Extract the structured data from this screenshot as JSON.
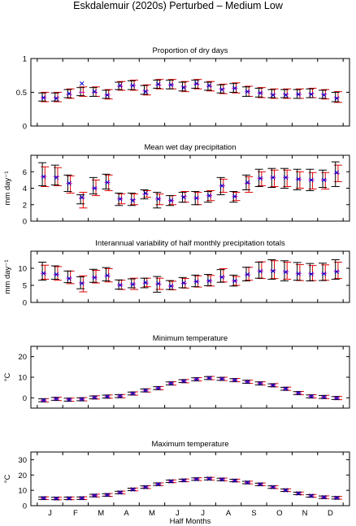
{
  "figure": {
    "title": "Eskdalemuir (2020s) Perturbed – Medium Low",
    "xlabel": "Half Months",
    "month_labels": [
      "J",
      "F",
      "M",
      "A",
      "M",
      "J",
      "J",
      "A",
      "S",
      "O",
      "N",
      "D"
    ]
  },
  "colors": {
    "interval_black": "#000000",
    "interval_red": "#e00000",
    "marker_blue": "#0000cc",
    "marker_magenta": "#cc00cc",
    "axes": "#000000"
  },
  "chart_data": [
    {
      "type": "errorbar",
      "title": "Proportion of dry days",
      "ylabel": "",
      "ylim": [
        0,
        1
      ],
      "yticks": [
        0,
        0.5,
        1
      ],
      "x": [
        1,
        2,
        3,
        4,
        5,
        6,
        7,
        8,
        9,
        10,
        11,
        12,
        13,
        14,
        15,
        16,
        17,
        18,
        19,
        20,
        21,
        22,
        23,
        24
      ],
      "center": [
        0.42,
        0.42,
        0.47,
        0.5,
        0.5,
        0.46,
        0.59,
        0.6,
        0.52,
        0.61,
        0.61,
        0.58,
        0.62,
        0.59,
        0.55,
        0.56,
        0.51,
        0.49,
        0.47,
        0.47,
        0.47,
        0.48,
        0.47,
        0.42
      ],
      "lower_black": [
        0.37,
        0.37,
        0.42,
        0.45,
        0.44,
        0.41,
        0.54,
        0.54,
        0.47,
        0.56,
        0.55,
        0.52,
        0.56,
        0.53,
        0.49,
        0.5,
        0.44,
        0.43,
        0.42,
        0.42,
        0.41,
        0.42,
        0.41,
        0.36
      ],
      "upper_black": [
        0.49,
        0.49,
        0.54,
        0.57,
        0.57,
        0.53,
        0.65,
        0.67,
        0.6,
        0.68,
        0.68,
        0.65,
        0.68,
        0.65,
        0.61,
        0.63,
        0.58,
        0.56,
        0.54,
        0.54,
        0.54,
        0.55,
        0.53,
        0.5
      ],
      "lower_red": [
        0.36,
        0.36,
        0.41,
        0.44,
        0.44,
        0.4,
        0.53,
        0.53,
        0.46,
        0.55,
        0.55,
        0.51,
        0.55,
        0.52,
        0.48,
        0.49,
        0.44,
        0.42,
        0.41,
        0.41,
        0.41,
        0.42,
        0.4,
        0.35
      ],
      "upper_red": [
        0.5,
        0.5,
        0.55,
        0.58,
        0.58,
        0.54,
        0.66,
        0.68,
        0.61,
        0.69,
        0.69,
        0.66,
        0.69,
        0.66,
        0.62,
        0.64,
        0.59,
        0.57,
        0.55,
        0.55,
        0.55,
        0.56,
        0.54,
        0.51
      ],
      "markers": [
        0.42,
        0.41,
        0.48,
        0.63,
        0.51,
        0.46,
        0.6,
        0.6,
        0.51,
        0.62,
        0.61,
        0.57,
        0.63,
        0.6,
        0.54,
        0.56,
        0.51,
        0.49,
        0.46,
        0.46,
        0.47,
        0.47,
        0.46,
        0.41
      ]
    },
    {
      "type": "errorbar",
      "title": "Mean wet day precipitation",
      "ylabel": "mm day⁻¹",
      "ylim": [
        0,
        8
      ],
      "yticks": [
        0,
        2,
        4,
        6
      ],
      "x": [
        1,
        2,
        3,
        4,
        5,
        6,
        7,
        8,
        9,
        10,
        11,
        12,
        13,
        14,
        15,
        16,
        17,
        18,
        19,
        20,
        21,
        22,
        23,
        24
      ],
      "center": [
        5.4,
        5.4,
        4.6,
        2.8,
        4.0,
        4.7,
        2.7,
        2.6,
        3.3,
        2.7,
        2.5,
        3.0,
        2.8,
        3.1,
        4.3,
        3.0,
        4.6,
        5.2,
        5.3,
        5.3,
        5.1,
        5.0,
        5.0,
        5.8
      ],
      "lower_black": [
        4.3,
        4.4,
        3.6,
        2.1,
        3.3,
        3.9,
        1.9,
        1.9,
        2.7,
        1.6,
        1.9,
        2.3,
        2.0,
        2.3,
        3.2,
        2.3,
        3.8,
        4.2,
        4.1,
        4.0,
        3.8,
        3.7,
        4.1,
        4.2
      ],
      "upper_black": [
        7.1,
        6.8,
        5.6,
        3.2,
        5.3,
        5.7,
        3.4,
        3.4,
        3.8,
        3.5,
        3.1,
        3.5,
        3.6,
        3.6,
        5.3,
        3.6,
        5.6,
        6.3,
        6.4,
        6.4,
        6.3,
        6.3,
        6.2,
        7.2
      ],
      "lower_red": [
        4.2,
        4.3,
        3.4,
        1.6,
        3.1,
        3.7,
        2.1,
        2.0,
        2.9,
        2.0,
        2.0,
        2.3,
        2.0,
        2.5,
        3.5,
        2.5,
        3.5,
        4.3,
        4.2,
        4.2,
        4.0,
        3.9,
        3.9,
        4.8
      ],
      "upper_red": [
        6.6,
        6.5,
        5.5,
        3.5,
        5.0,
        5.6,
        3.3,
        3.3,
        3.7,
        3.3,
        3.1,
        3.6,
        3.5,
        3.7,
        5.1,
        3.5,
        5.4,
        6.0,
        6.2,
        6.2,
        6.0,
        5.9,
        5.9,
        6.8
      ],
      "markers": [
        5.4,
        5.3,
        4.6,
        2.9,
        4.0,
        4.7,
        2.7,
        2.5,
        3.4,
        2.7,
        2.5,
        2.9,
        2.8,
        3.1,
        4.3,
        3.0,
        4.7,
        5.2,
        5.3,
        5.3,
        5.1,
        5.0,
        5.0,
        5.9
      ]
    },
    {
      "type": "errorbar",
      "title": "Interannual variability of half monthly precipitation totals",
      "ylabel": "mm day⁻¹",
      "ylim": [
        0,
        15
      ],
      "yticks": [
        0,
        5,
        10
      ],
      "x": [
        1,
        2,
        3,
        4,
        5,
        6,
        7,
        8,
        9,
        10,
        11,
        12,
        13,
        14,
        15,
        16,
        17,
        18,
        19,
        20,
        21,
        22,
        23,
        24
      ],
      "center": [
        8.5,
        8.2,
        7.1,
        5.7,
        7.3,
        7.8,
        5.1,
        5.4,
        5.7,
        5.4,
        4.8,
        5.6,
        6.1,
        6.3,
        7.5,
        6.3,
        8.1,
        9.2,
        9.3,
        9.0,
        8.5,
        8.4,
        8.5,
        9.1
      ],
      "lower_black": [
        6.5,
        6.8,
        5.8,
        4.0,
        5.9,
        6.3,
        3.9,
        4.3,
        4.3,
        3.0,
        3.8,
        4.3,
        4.6,
        4.9,
        5.9,
        4.8,
        6.3,
        7.1,
        6.8,
        6.3,
        6.5,
        6.3,
        6.4,
        6.8
      ],
      "upper_black": [
        11.8,
        10.7,
        9.2,
        7.5,
        9.7,
        10.2,
        6.6,
        6.9,
        7.1,
        7.6,
        6.4,
        7.3,
        8.0,
        8.2,
        9.6,
        8.0,
        10.3,
        11.8,
        12.5,
        12.2,
        11.7,
        11.4,
        11.5,
        12.5
      ],
      "lower_red": [
        6.8,
        6.5,
        5.5,
        3.1,
        5.7,
        6.0,
        3.8,
        3.8,
        4.6,
        3.8,
        3.7,
        4.2,
        4.5,
        4.8,
        6.0,
        5.0,
        6.5,
        7.0,
        7.0,
        6.8,
        6.4,
        6.4,
        6.5,
        7.0
      ],
      "upper_red": [
        10.9,
        10.5,
        9.2,
        7.8,
        9.4,
        9.9,
        6.5,
        7.1,
        7.1,
        7.1,
        6.2,
        7.0,
        7.8,
        7.9,
        9.9,
        7.6,
        10.3,
        11.9,
        12.2,
        11.8,
        11.1,
        10.8,
        11.0,
        11.8
      ],
      "markers": [
        8.5,
        8.2,
        7.0,
        5.6,
        7.3,
        7.9,
        5.1,
        5.3,
        5.8,
        5.5,
        4.8,
        5.7,
        6.1,
        6.3,
        7.4,
        6.3,
        8.2,
        9.1,
        9.2,
        8.9,
        8.4,
        8.3,
        8.4,
        9.0
      ]
    },
    {
      "type": "errorbar",
      "title": "Minimum temperature",
      "ylabel": "°C",
      "ylim": [
        -5,
        25
      ],
      "yticks": [
        0,
        10,
        20
      ],
      "x": [
        1,
        2,
        3,
        4,
        5,
        6,
        7,
        8,
        9,
        10,
        11,
        12,
        13,
        14,
        15,
        16,
        17,
        18,
        19,
        20,
        21,
        22,
        23,
        24
      ],
      "center": [
        -1.2,
        -0.5,
        -0.9,
        -0.7,
        0.2,
        0.6,
        0.8,
        2.1,
        3.6,
        4.7,
        7.0,
        8.1,
        9.0,
        9.6,
        9.2,
        8.6,
        7.8,
        7.0,
        6.1,
        4.4,
        2.3,
        0.7,
        0.4,
        -0.1
      ],
      "lower_black": [
        -1.9,
        -1.2,
        -1.6,
        -1.4,
        -0.5,
        -0.1,
        0.1,
        1.4,
        2.9,
        4.0,
        6.3,
        7.4,
        8.3,
        8.9,
        8.5,
        7.9,
        7.1,
        6.3,
        5.4,
        3.7,
        1.6,
        0.0,
        -0.3,
        -0.8
      ],
      "upper_black": [
        -0.5,
        0.2,
        -0.2,
        0.0,
        0.9,
        1.3,
        1.5,
        2.8,
        4.3,
        5.4,
        7.7,
        8.8,
        9.7,
        10.3,
        9.9,
        9.3,
        8.5,
        7.7,
        6.8,
        5.1,
        3.0,
        1.4,
        1.1,
        0.6
      ],
      "lower_red": [
        -2.0,
        -1.3,
        -1.7,
        -1.5,
        -0.6,
        -0.2,
        0.0,
        1.3,
        2.8,
        3.9,
        6.2,
        7.3,
        8.2,
        8.8,
        8.4,
        7.8,
        7.0,
        6.2,
        5.3,
        3.6,
        1.5,
        -0.1,
        -0.4,
        -0.9
      ],
      "upper_red": [
        -0.4,
        0.3,
        -0.1,
        0.1,
        1.0,
        1.4,
        1.6,
        2.9,
        4.4,
        5.5,
        7.8,
        8.9,
        9.8,
        10.4,
        10.0,
        9.4,
        8.6,
        7.8,
        6.9,
        5.2,
        3.1,
        1.5,
        1.2,
        0.7
      ],
      "markers": [
        -1.2,
        -0.5,
        -0.9,
        -0.7,
        0.2,
        0.6,
        0.8,
        2.1,
        3.6,
        4.7,
        7.0,
        8.1,
        9.0,
        9.6,
        9.2,
        8.6,
        7.8,
        7.0,
        6.1,
        4.4,
        2.3,
        0.7,
        0.4,
        -0.1
      ]
    },
    {
      "type": "errorbar",
      "title": "Maximum temperature",
      "ylabel": "°C",
      "ylim": [
        0,
        35
      ],
      "yticks": [
        0,
        10,
        20,
        30
      ],
      "x": [
        1,
        2,
        3,
        4,
        5,
        6,
        7,
        8,
        9,
        10,
        11,
        12,
        13,
        14,
        15,
        16,
        17,
        18,
        19,
        20,
        21,
        22,
        23,
        24
      ],
      "center": [
        4.9,
        4.7,
        4.8,
        4.9,
        6.6,
        7.0,
        8.6,
        10.6,
        12.1,
        14.0,
        15.9,
        16.5,
        17.3,
        17.6,
        17.1,
        16.4,
        15.1,
        13.9,
        12.1,
        10.1,
        8.0,
        6.4,
        5.5,
        5.1
      ],
      "lower_black": [
        4.1,
        3.9,
        4.0,
        4.1,
        5.8,
        6.2,
        7.8,
        9.8,
        11.3,
        13.2,
        15.1,
        15.7,
        16.5,
        16.8,
        16.3,
        15.6,
        14.3,
        13.1,
        11.3,
        9.3,
        7.2,
        5.6,
        4.7,
        4.3
      ],
      "upper_black": [
        5.7,
        5.5,
        5.6,
        5.7,
        7.4,
        7.8,
        9.4,
        11.4,
        12.9,
        14.8,
        16.7,
        17.3,
        18.1,
        18.4,
        17.9,
        17.2,
        15.9,
        14.7,
        12.9,
        10.9,
        8.8,
        7.2,
        6.3,
        5.9
      ],
      "lower_red": [
        4.0,
        3.8,
        3.9,
        4.0,
        5.7,
        6.1,
        7.7,
        9.7,
        11.2,
        13.1,
        15.0,
        15.6,
        16.4,
        16.7,
        16.2,
        15.5,
        14.2,
        13.0,
        11.2,
        9.2,
        7.1,
        5.5,
        4.6,
        4.2
      ],
      "upper_red": [
        5.8,
        5.6,
        5.7,
        5.8,
        7.5,
        7.9,
        9.5,
        11.5,
        13.0,
        14.9,
        16.8,
        17.4,
        18.2,
        18.5,
        18.0,
        17.3,
        16.0,
        14.8,
        13.0,
        11.0,
        8.9,
        7.3,
        6.4,
        6.0
      ],
      "markers": [
        4.9,
        4.7,
        4.8,
        4.9,
        6.6,
        7.0,
        8.6,
        10.6,
        12.1,
        14.0,
        15.9,
        16.5,
        17.3,
        17.6,
        17.1,
        16.4,
        15.1,
        13.9,
        12.1,
        10.1,
        8.0,
        6.4,
        5.5,
        5.1
      ]
    }
  ]
}
